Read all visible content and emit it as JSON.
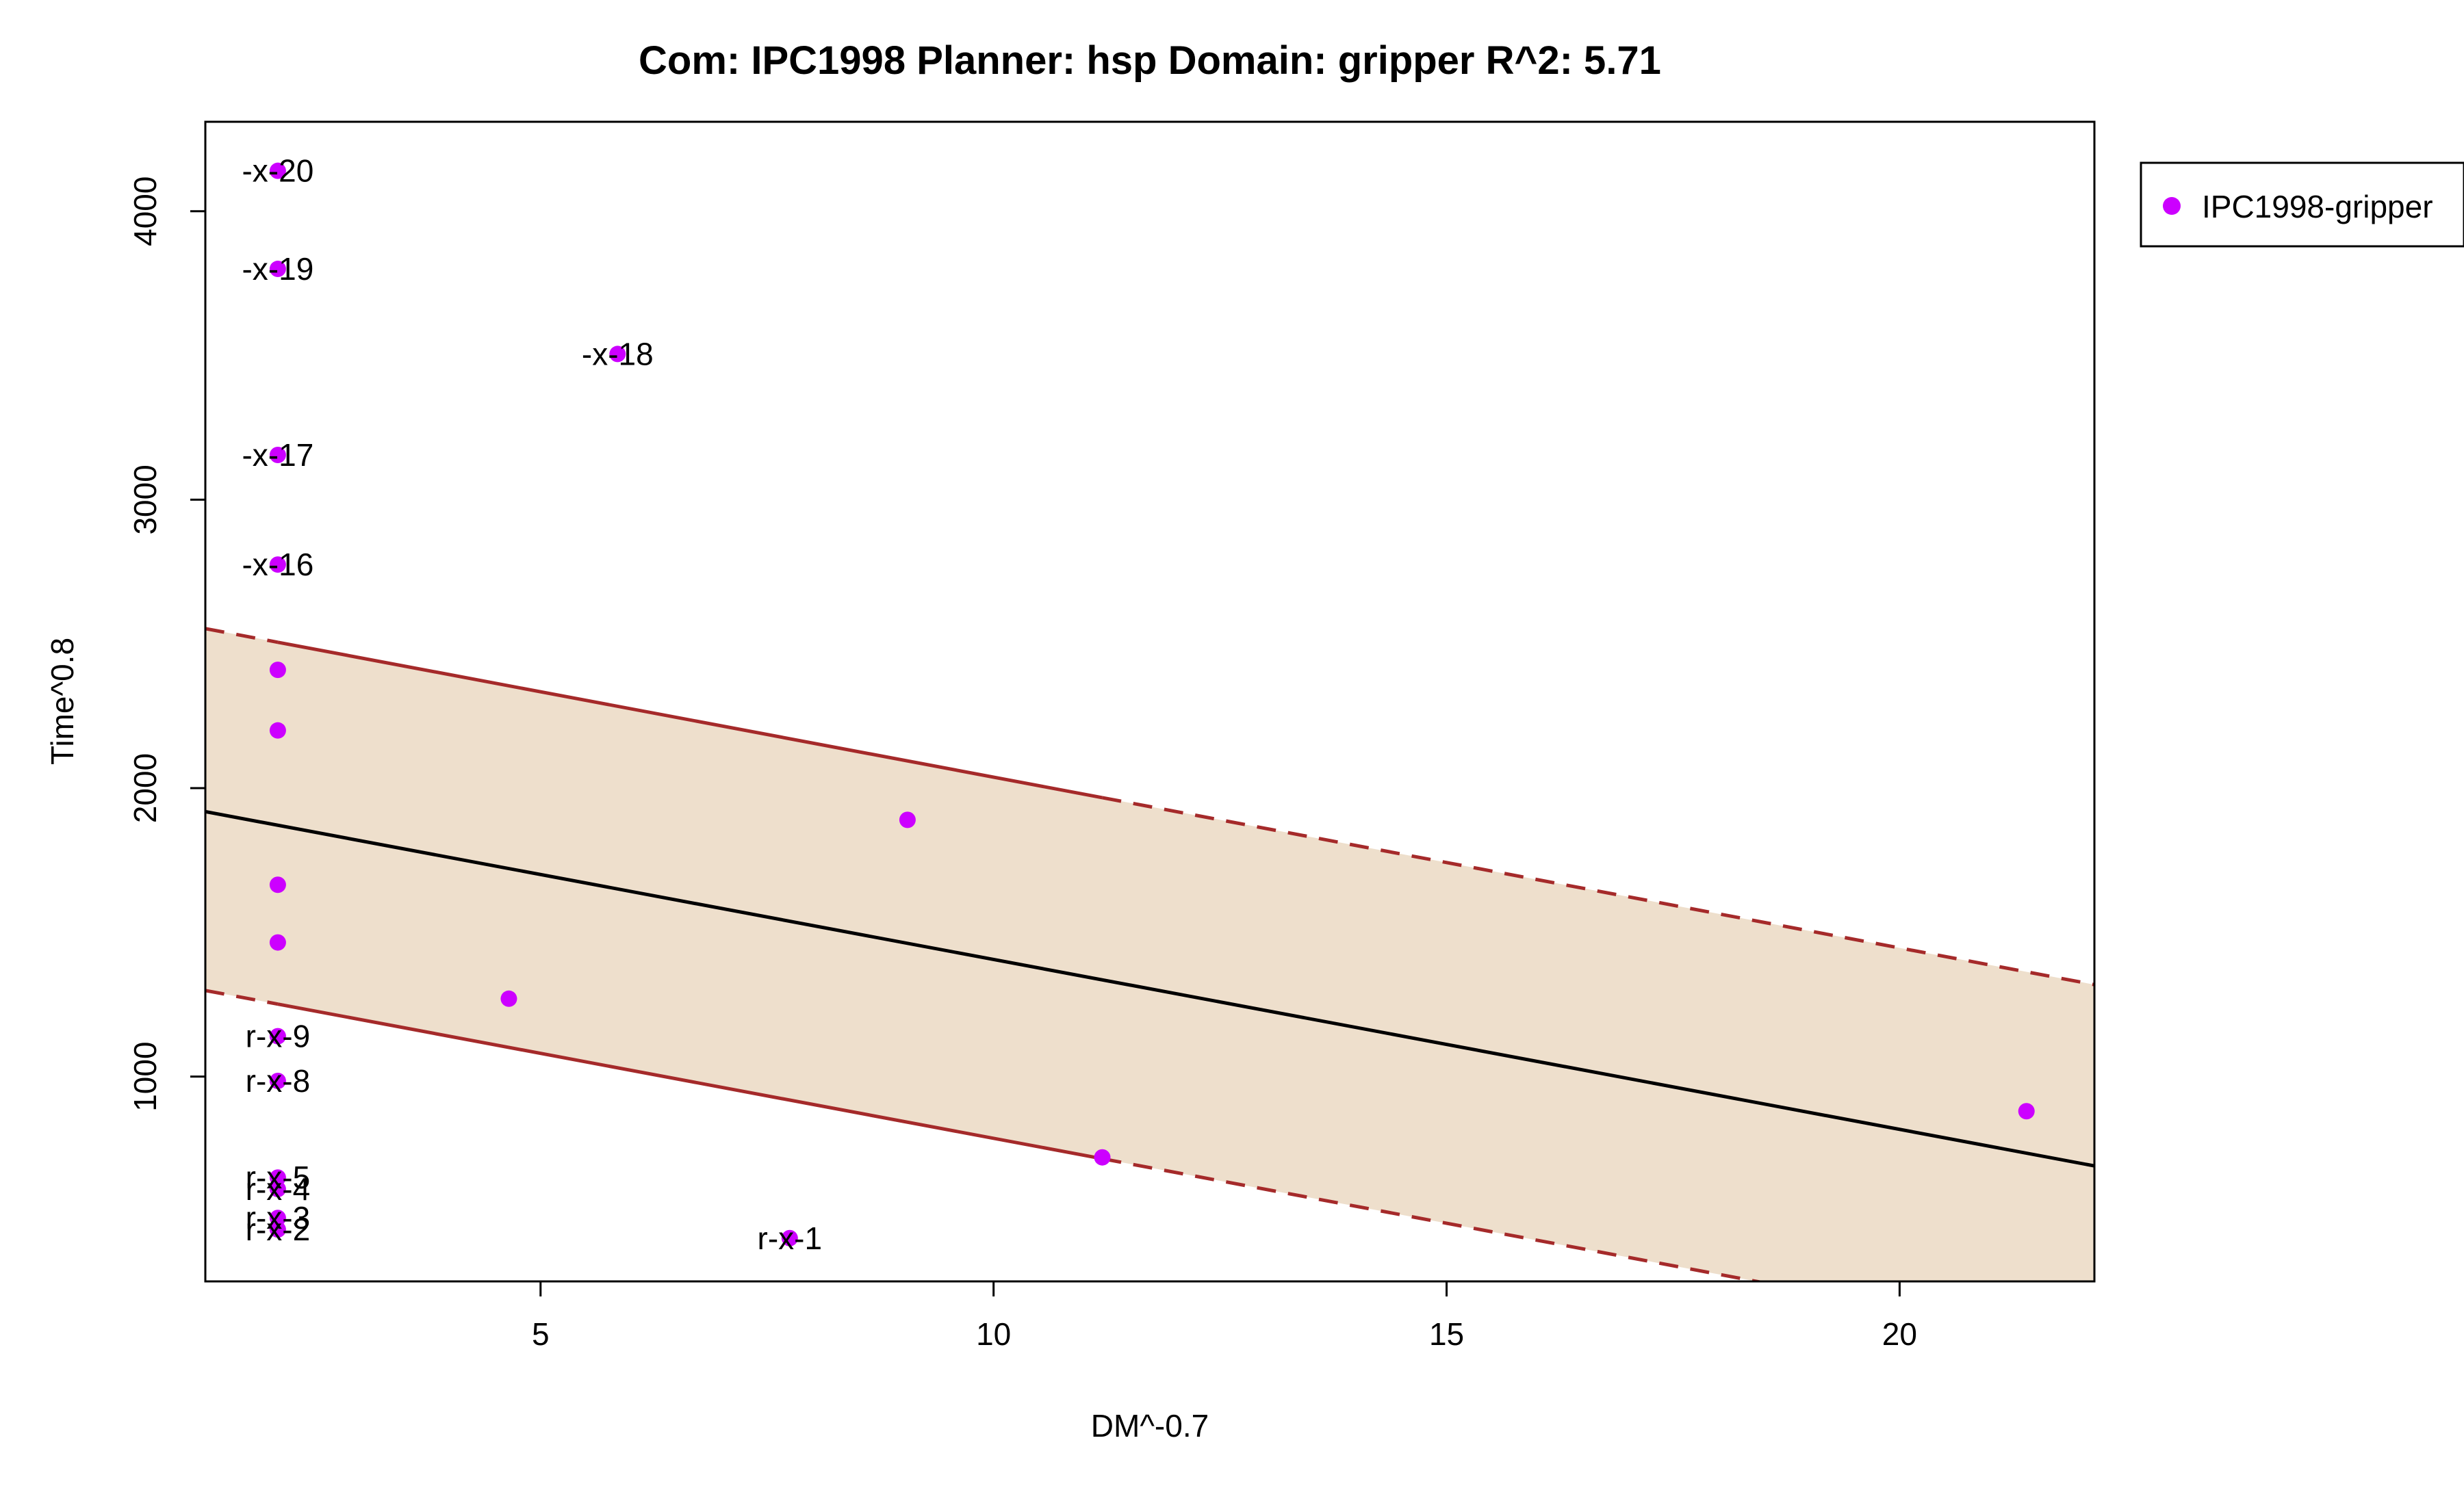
{
  "chart_data": {
    "type": "scatter",
    "title": "Com: IPC1998 Planner: hsp Domain: gripper R^2: 5.71",
    "xlabel": "DM^-0.7",
    "ylabel": "Time^0.8",
    "xlim": [
      1.3,
      22.15
    ],
    "ylim": [
      290,
      4310
    ],
    "xticks": [
      5,
      10,
      15,
      20
    ],
    "yticks": [
      1000,
      2000,
      3000,
      4000
    ],
    "grid": false,
    "legend": {
      "position": "outside-right",
      "entries": [
        "IPC1998-gripper"
      ]
    },
    "colors": {
      "points": "#CC00FF",
      "band_fill": "#EEDFCC",
      "band_line": "#A52A2A",
      "fit_line": "#000000"
    },
    "regression": {
      "intercept": 1995,
      "slope": -58.9
    },
    "prediction_band": {
      "upper": {
        "intercept": 2630,
        "slope": -59.2
      },
      "lower": {
        "intercept": 1375,
        "slope": -58.9
      },
      "solid_x_range": [
        2.1,
        11.2
      ]
    },
    "series": [
      {
        "name": "IPC1998-gripper",
        "points": [
          {
            "x": 2.1,
            "y": 4140,
            "label": "-x-20"
          },
          {
            "x": 2.1,
            "y": 3800,
            "label": "-x-19"
          },
          {
            "x": 5.85,
            "y": 3505,
            "label": "-x-18"
          },
          {
            "x": 2.1,
            "y": 3155,
            "label": "-x-17"
          },
          {
            "x": 2.1,
            "y": 2775,
            "label": "-x-16"
          },
          {
            "x": 2.1,
            "y": 2410,
            "label": ""
          },
          {
            "x": 2.1,
            "y": 2200,
            "label": ""
          },
          {
            "x": 9.05,
            "y": 1890,
            "label": ""
          },
          {
            "x": 2.1,
            "y": 1665,
            "label": ""
          },
          {
            "x": 2.1,
            "y": 1465,
            "label": ""
          },
          {
            "x": 4.65,
            "y": 1270,
            "label": ""
          },
          {
            "x": 2.1,
            "y": 1140,
            "label": "r-x-9"
          },
          {
            "x": 2.1,
            "y": 985,
            "label": "r-x-8"
          },
          {
            "x": 11.2,
            "y": 720,
            "label": ""
          },
          {
            "x": 21.4,
            "y": 880,
            "label": ""
          },
          {
            "x": 2.1,
            "y": 650,
            "label": "r-x-5"
          },
          {
            "x": 2.1,
            "y": 610,
            "label": "r-x-4"
          },
          {
            "x": 2.1,
            "y": 510,
            "label": "r-x-3"
          },
          {
            "x": 2.1,
            "y": 470,
            "label": "r-x-2"
          },
          {
            "x": 7.75,
            "y": 440,
            "label": "r-x-1"
          }
        ]
      }
    ]
  }
}
